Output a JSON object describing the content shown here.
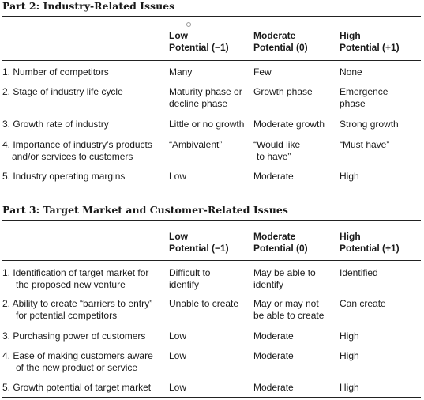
{
  "part2": {
    "title": "Part 2: Industry-Related Issues",
    "headers": [
      [
        "Low",
        "Potential (−1)"
      ],
      [
        "Moderate",
        "Potential (0)"
      ],
      [
        "High",
        "Potential (+1)"
      ]
    ],
    "rows": [
      {
        "label": [
          "1. Number of competitors"
        ],
        "low": [
          "Many"
        ],
        "mod": [
          "Few"
        ],
        "high": [
          "None"
        ]
      },
      {
        "label": [
          "2. Stage of industry life cycle"
        ],
        "low": [
          "Maturity phase or",
          "decline phase"
        ],
        "mod": [
          "Growth phase"
        ],
        "high": [
          "Emergence",
          "phase"
        ]
      },
      {
        "label": [
          "3. Growth rate of industry"
        ],
        "low": [
          "Little or no growth"
        ],
        "mod": [
          "Moderate growth"
        ],
        "high": [
          "Strong growth"
        ]
      },
      {
        "label": [
          "4. Importance of industry’s products",
          "and/or services to customers"
        ],
        "low": [
          "“Ambivalent”"
        ],
        "mod": [
          "“Would like",
          "to have”"
        ],
        "high": [
          "“Must have”"
        ]
      },
      {
        "label": [
          "5. Industry operating margins"
        ],
        "low": [
          "Low"
        ],
        "mod": [
          "Moderate"
        ],
        "high": [
          "High"
        ]
      }
    ]
  },
  "part3": {
    "title": "Part 3: Target Market and Customer-Related Issues",
    "headers": [
      [
        "Low",
        "Potential (−1)"
      ],
      [
        "Moderate",
        "Potential (0)"
      ],
      [
        "High",
        "Potential (+1)"
      ]
    ],
    "rows": [
      {
        "label": [
          "1. Identification of target market for",
          "the proposed new venture"
        ],
        "low": [
          "Difficult to",
          "identify"
        ],
        "mod": [
          "May be able to",
          "identify"
        ],
        "high": [
          "Identified"
        ]
      },
      {
        "label": [
          "2. Ability to create “barriers to entry”",
          "for potential competitors"
        ],
        "low": [
          "Unable to create"
        ],
        "mod": [
          "May or may not",
          "be able to create"
        ],
        "high": [
          "Can create"
        ]
      },
      {
        "label": [
          "3. Purchasing power of customers"
        ],
        "low": [
          "Low"
        ],
        "mod": [
          "Moderate"
        ],
        "high": [
          "High"
        ]
      },
      {
        "label": [
          "4. Ease of making customers aware",
          "of the new product or service"
        ],
        "low": [
          "Low"
        ],
        "mod": [
          "Moderate"
        ],
        "high": [
          "High"
        ]
      },
      {
        "label": [
          "5. Growth potential of target market"
        ],
        "low": [
          "Low"
        ],
        "mod": [
          "Moderate"
        ],
        "high": [
          "High"
        ]
      }
    ]
  }
}
